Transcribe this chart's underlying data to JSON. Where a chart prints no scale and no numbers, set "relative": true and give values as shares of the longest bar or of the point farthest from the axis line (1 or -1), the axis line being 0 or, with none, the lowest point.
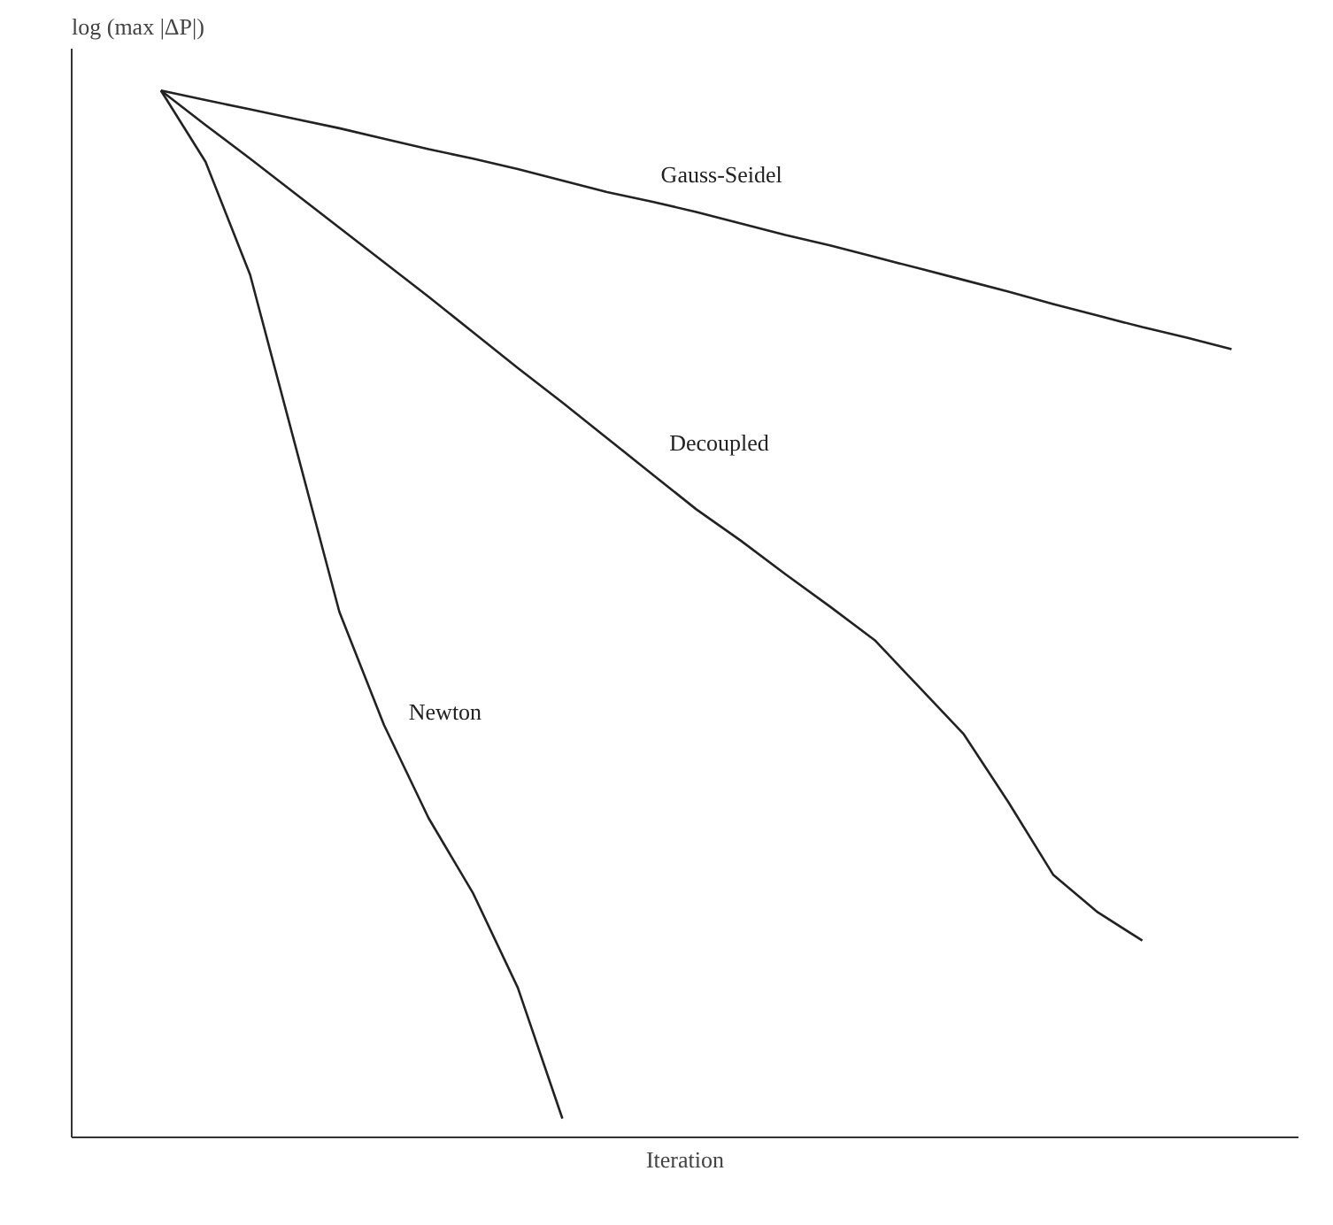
{
  "chart_data": {
    "type": "line",
    "relative": true,
    "xlabel": "Iteration",
    "ylabel": "log (max |ΔP|)",
    "categories": [
      null,
      null,
      null,
      null,
      null,
      null,
      null,
      null,
      null,
      null,
      null,
      null,
      null,
      null,
      null,
      null,
      null,
      null,
      null,
      null,
      null,
      null,
      null,
      null,
      null
    ],
    "legend": false,
    "marker": "none",
    "line_style": "solid",
    "series": [
      {
        "name": "Gauss-Seidel",
        "color": "#222222",
        "values": [
          1.0,
          0.991,
          0.982,
          0.973,
          0.964,
          0.954,
          0.944,
          0.935,
          0.925,
          0.914,
          0.903,
          0.894,
          0.884,
          0.873,
          0.862,
          0.852,
          0.841,
          0.83,
          0.819,
          0.808,
          0.796,
          0.785,
          0.774,
          0.764,
          0.753
        ]
      },
      {
        "name": "Decoupled",
        "color": "#222222",
        "values": [
          1.0,
          0.967,
          0.935,
          0.902,
          0.869,
          0.836,
          0.803,
          0.769,
          0.735,
          0.702,
          0.668,
          0.634,
          0.6,
          0.57,
          0.538,
          0.507,
          0.475,
          0.43,
          0.385,
          0.32,
          0.251,
          0.215,
          0.188,
          null,
          null
        ]
      },
      {
        "name": "Newton",
        "color": "#222222",
        "values": [
          1.0,
          0.932,
          0.824,
          0.663,
          0.502,
          0.394,
          0.305,
          0.233,
          0.143,
          0.018,
          null,
          null,
          null,
          null,
          null,
          null,
          null,
          null,
          null,
          null,
          null,
          null,
          null,
          null,
          null
        ]
      }
    ]
  }
}
